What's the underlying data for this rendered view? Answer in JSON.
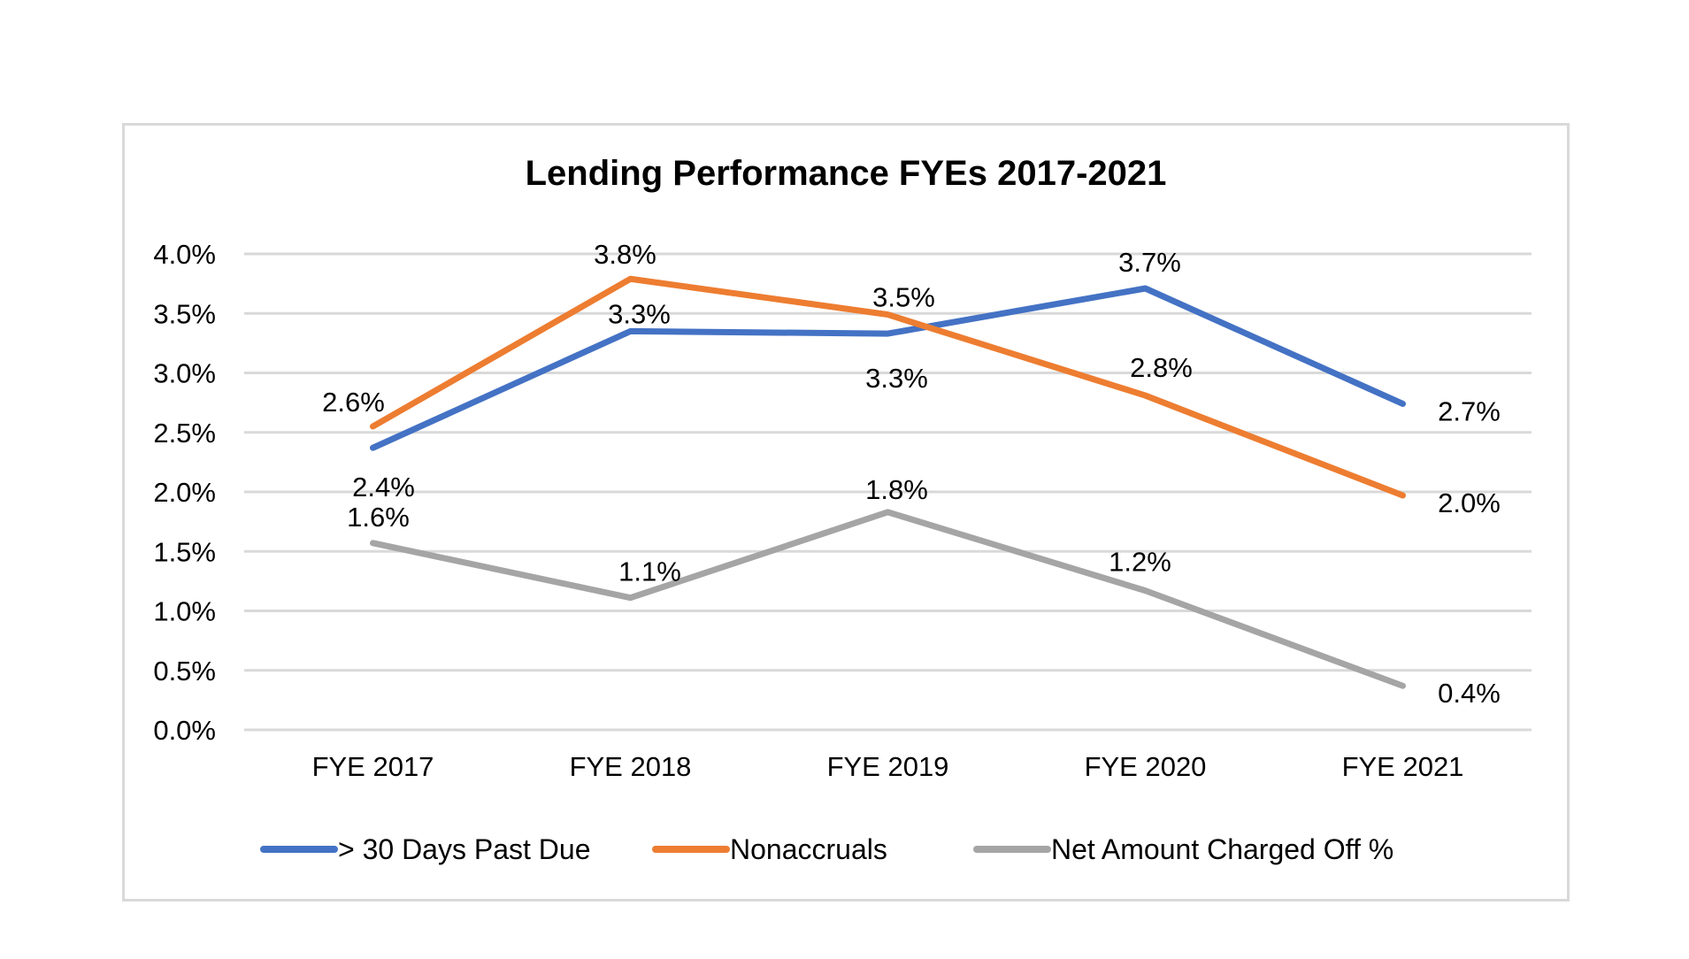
{
  "chart_data": {
    "type": "line",
    "title": "Lending Performance FYEs 2017-2021",
    "xlabel": "",
    "ylabel": "",
    "categories": [
      "FYE 2017",
      "FYE 2018",
      "FYE 2019",
      "FYE 2020",
      "FYE 2021"
    ],
    "ylim": [
      0,
      4.0
    ],
    "yticks": [
      "0.0%",
      "0.5%",
      "1.0%",
      "1.5%",
      "2.0%",
      "2.5%",
      "3.0%",
      "3.5%",
      "4.0%"
    ],
    "grid": true,
    "legend_position": "bottom",
    "series": [
      {
        "name": "> 30 Days Past Due",
        "color": "#4472C4",
        "values": [
          2.37,
          3.35,
          3.33,
          3.71,
          2.74
        ],
        "labels": [
          "2.4%",
          "3.3%",
          "3.3%",
          "3.7%",
          "2.7%"
        ]
      },
      {
        "name": "Nonaccruals",
        "color": "#ED7D31",
        "values": [
          2.55,
          3.79,
          3.49,
          2.81,
          1.97
        ],
        "labels": [
          "2.6%",
          "3.8%",
          "3.5%",
          "2.8%",
          "2.0%"
        ]
      },
      {
        "name": "Net Amount Charged Off %",
        "color": "#A5A5A5",
        "values": [
          1.57,
          1.11,
          1.83,
          1.17,
          0.37
        ],
        "labels": [
          "1.6%",
          "1.1%",
          "1.8%",
          "1.2%",
          "0.4%"
        ]
      }
    ]
  }
}
